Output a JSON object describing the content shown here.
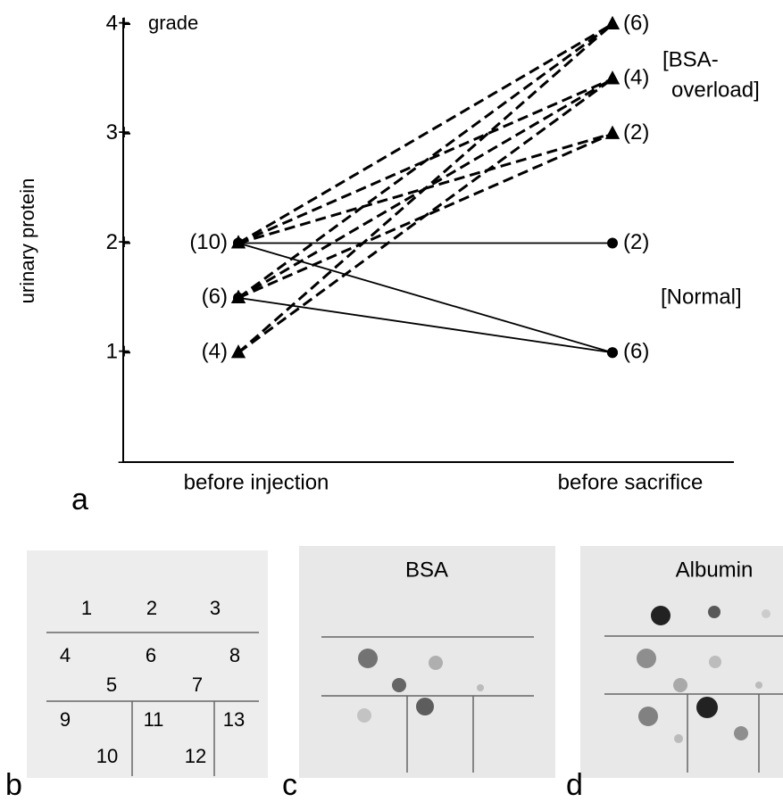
{
  "chart_data": {
    "type": "line",
    "panel_label": "a",
    "y_label": "urinary  protein",
    "y_unit_label": "grade",
    "categories": [
      "before injection",
      "before sacrifice"
    ],
    "ylim": [
      0,
      4
    ],
    "yticks": [
      {
        "value": 0,
        "label": "–"
      },
      {
        "value": 1,
        "label": "1+"
      },
      {
        "value": 2,
        "label": "2+"
      },
      {
        "value": 3,
        "label": "3+"
      },
      {
        "value": 4,
        "label": "4+"
      }
    ],
    "series": [
      {
        "values": [
          2,
          4
        ],
        "dashed": true,
        "marker": "triangle",
        "color": "#000000"
      },
      {
        "values": [
          2,
          3.5
        ],
        "dashed": true,
        "marker": "triangle",
        "color": "#000000"
      },
      {
        "values": [
          2,
          3
        ],
        "dashed": true,
        "marker": "triangle",
        "color": "#000000"
      },
      {
        "values": [
          1.5,
          4
        ],
        "dashed": true,
        "marker": "triangle",
        "color": "#000000"
      },
      {
        "values": [
          1.5,
          3.5
        ],
        "dashed": true,
        "marker": "triangle",
        "color": "#000000"
      },
      {
        "values": [
          1.5,
          3
        ],
        "dashed": true,
        "marker": "triangle",
        "color": "#000000"
      },
      {
        "values": [
          1,
          4
        ],
        "dashed": true,
        "marker": "triangle",
        "color": "#000000"
      },
      {
        "values": [
          1,
          3.5
        ],
        "dashed": true,
        "marker": "triangle",
        "color": "#000000"
      },
      {
        "values": [
          2,
          2
        ],
        "dashed": false,
        "marker": "circle",
        "color": "#000000"
      },
      {
        "values": [
          2,
          1
        ],
        "dashed": false,
        "marker": "circle",
        "color": "#000000"
      },
      {
        "values": [
          1.5,
          1
        ],
        "dashed": false,
        "marker": "circle",
        "color": "#000000"
      }
    ],
    "annotations": [
      {
        "text": "(10)",
        "category": 0,
        "y": 2
      },
      {
        "text": "(6)",
        "category": 0,
        "y": 1.5
      },
      {
        "text": "(4)",
        "category": 0,
        "y": 1
      },
      {
        "text": "(6)",
        "category": 1,
        "y": 4
      },
      {
        "text": "(4)",
        "category": 1,
        "y": 3.5
      },
      {
        "text": "(2)",
        "category": 1,
        "y": 3
      },
      {
        "text": "(2)",
        "category": 1,
        "y": 2
      },
      {
        "text": "(6)",
        "category": 1,
        "y": 1
      }
    ],
    "group_labels": [
      "[BSA-",
      "overload]",
      "[Normal]"
    ]
  },
  "panels": {
    "b": {
      "letter": "b",
      "numbers": [
        "1",
        "2",
        "3",
        "4",
        "6",
        "8",
        "5",
        "7",
        "9",
        "11",
        "13",
        "10",
        "12"
      ]
    },
    "c": {
      "letter": "c",
      "title": "BSA"
    },
    "d": {
      "letter": "d",
      "title": "Albumin"
    }
  }
}
